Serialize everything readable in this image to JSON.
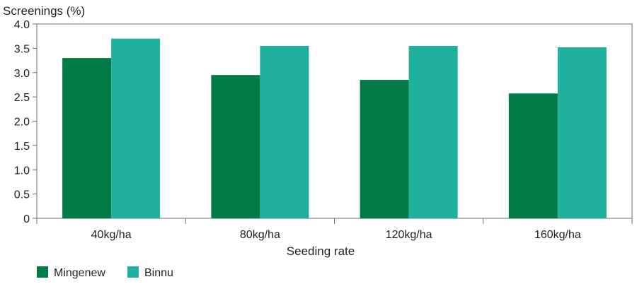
{
  "chart_data": {
    "type": "bar",
    "title": "",
    "ylabel": "Screenings (%)",
    "xlabel": "Seeding rate",
    "categories": [
      "40kg/ha",
      "80kg/ha",
      "120kg/ha",
      "160kg/ha"
    ],
    "series": [
      {
        "name": "Mingenew",
        "color": "#007a46",
        "values": [
          3.3,
          2.95,
          2.85,
          2.57
        ]
      },
      {
        "name": "Binnu",
        "color": "#20b09e",
        "values": [
          3.7,
          3.55,
          3.55,
          3.52
        ]
      }
    ],
    "ylim": [
      0,
      4.0
    ],
    "yticks": [
      "0",
      "0.5",
      "1.0",
      "1.5",
      "2.0",
      "2.5",
      "3.0",
      "3.5",
      "4.0"
    ],
    "grid": false,
    "legend_position": "bottom-left"
  }
}
